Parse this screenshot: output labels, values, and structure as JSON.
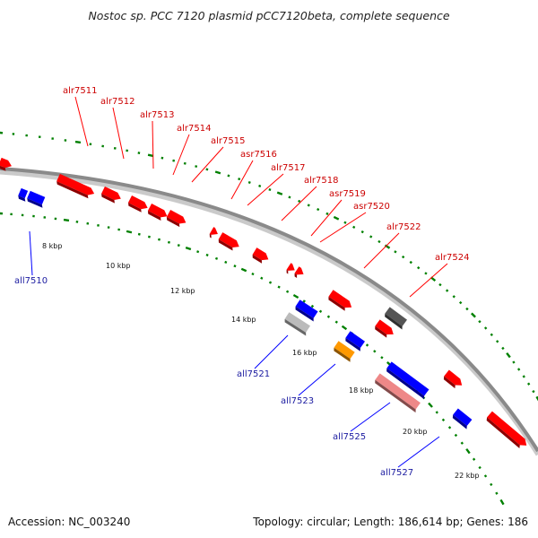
{
  "title": "Nostoc sp. PCC 7120 plasmid pCC7120beta, complete sequence",
  "footer": {
    "accession": "Accession: NC_003240",
    "summary": "Topology: circular; Length: 186,614 bp; Genes: 186"
  },
  "colors": {
    "forward": "#ff0000",
    "reverse": "#0000ff",
    "backbone": "#888888",
    "tick": "#008000",
    "forward_label": "#cc0000",
    "reverse_label": "#1a1aa0",
    "grey_feature": "#555555",
    "light_grey_feature": "#bbbbbb",
    "orange_feature": "#ff9900",
    "pink_feature": "#ee8888"
  },
  "kbp_ticks": [
    "8 kbp",
    "10 kbp",
    "12 kbp",
    "14 kbp",
    "16 kbp",
    "18 kbp",
    "20 kbp",
    "22 kbp"
  ],
  "forward_labels": [
    "alr7511",
    "alr7512",
    "alr7513",
    "alr7514",
    "alr7515",
    "asr7516",
    "alr7517",
    "alr7518",
    "asr7519",
    "asr7520",
    "alr7522",
    "alr7524"
  ],
  "reverse_labels": [
    "all7510",
    "all7521",
    "all7523",
    "all7525",
    "all7527"
  ]
}
